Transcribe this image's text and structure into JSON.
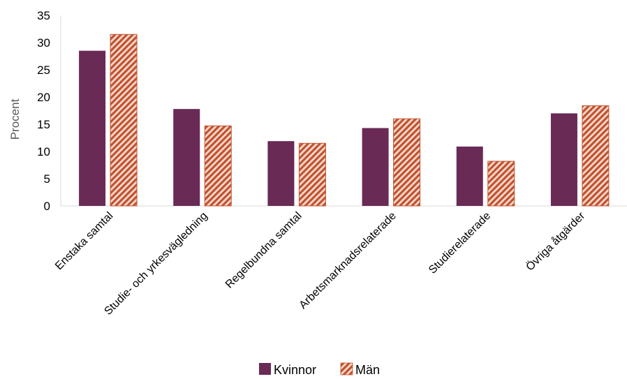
{
  "chart_data": {
    "type": "bar",
    "categories": [
      "Enstaka samtal",
      "Studie- och yrkesvägledning",
      "Regelbundna samtal",
      "Arbetsmarknadsrelaterade",
      "Studierelaterade",
      "Övriga åtgärder"
    ],
    "series": [
      {
        "name": "Kvinnor",
        "values": [
          28.5,
          17.8,
          11.9,
          14.3,
          10.9,
          17.0
        ],
        "color": "#692a55",
        "pattern": "solid"
      },
      {
        "name": "Män",
        "values": [
          31.5,
          14.7,
          11.5,
          16.0,
          8.2,
          18.4
        ],
        "color": "#c1532e",
        "pattern": "diagonal-hatch"
      }
    ],
    "ylabel": "Procent",
    "yticks": [
      0,
      5,
      10,
      15,
      20,
      25,
      30,
      35
    ],
    "ylim": [
      0,
      35
    ],
    "grid": false,
    "legend": "bottom"
  }
}
